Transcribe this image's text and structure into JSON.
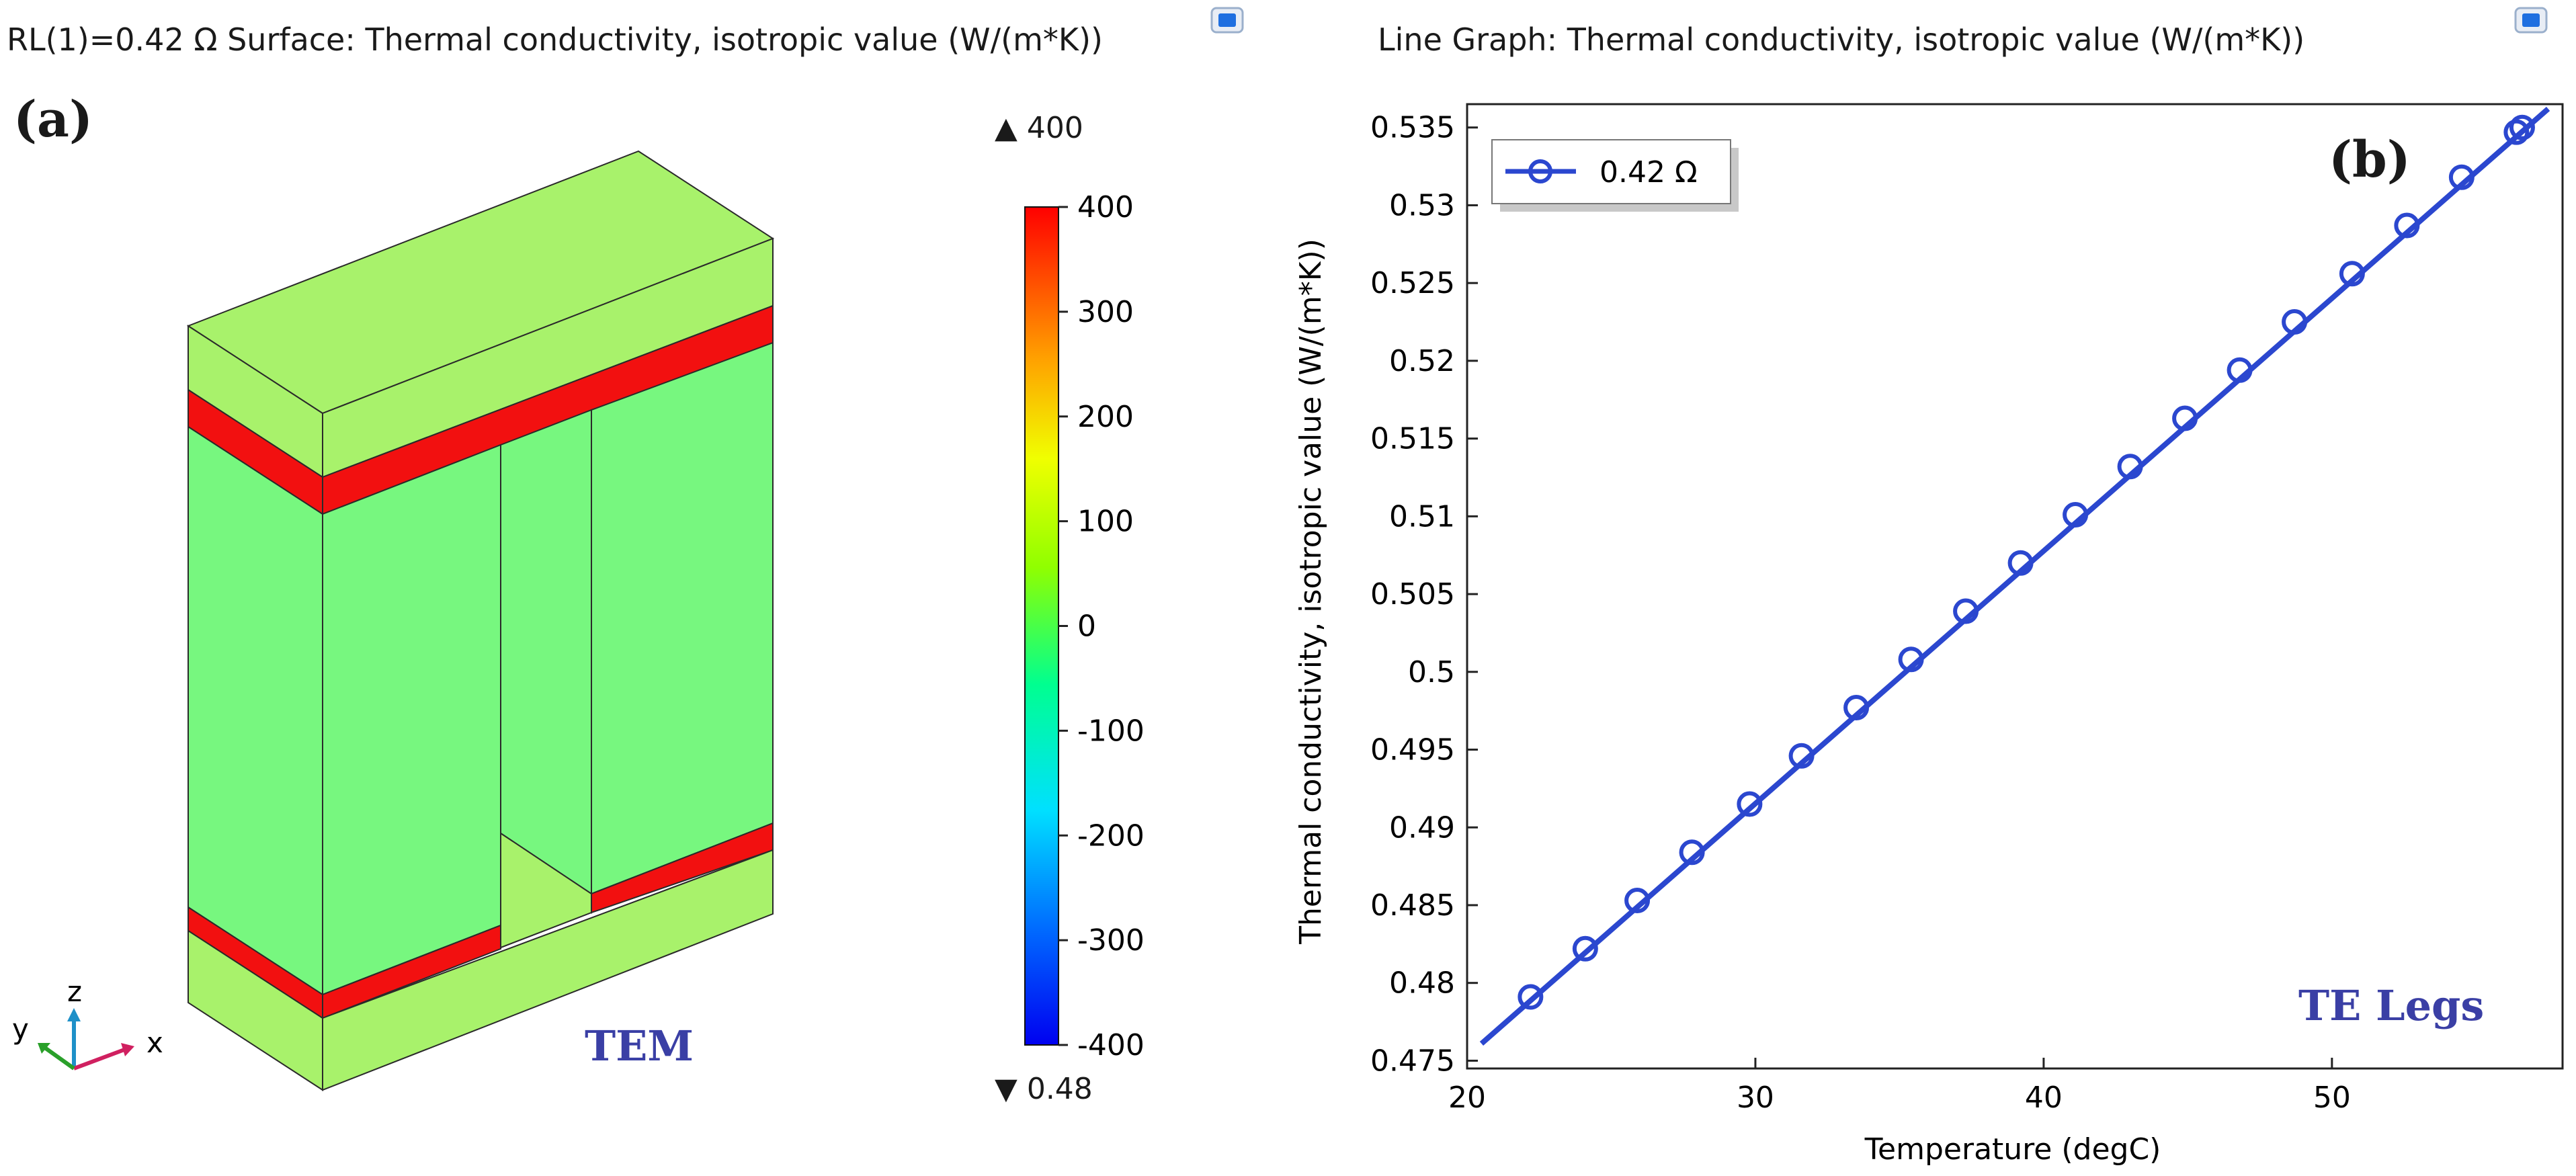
{
  "left_panel": {
    "title": "RL(1)=0.42 Ω   Surface: Thermal conductivity, isotropic value (W/(m*K))",
    "panel_label": "(a)",
    "model_label": "TEM",
    "axis_labels": {
      "x": "x",
      "y": "y",
      "z": "z"
    },
    "icon": "comsol-window-icon",
    "colorbar": {
      "max_marker": "▲ 400",
      "min_marker": "▼ 0.48",
      "ticks": [
        "400",
        "300",
        "200",
        "100",
        "0",
        "-100",
        "-200",
        "-300",
        "-400"
      ],
      "colors": [
        "#0000ff",
        "#00a0ff",
        "#00ffff",
        "#00ff80",
        "#80ff00",
        "#ffff00",
        "#ff8000",
        "#ff0000"
      ]
    },
    "colors": {
      "leg": "#77f77f",
      "ceramic": "#a8f26b",
      "electrode": "#f21010"
    }
  },
  "right_panel": {
    "title": "Line Graph: Thermal conductivity, isotropic value (W/(m*K))",
    "panel_label": "(b)",
    "model_label": "TE Legs",
    "icon": "comsol-window-icon"
  },
  "chart_data": {
    "type": "line",
    "title": "Line Graph: Thermal conductivity, isotropic value (W/(m*K))",
    "xlabel": "Temperature (degC)",
    "ylabel": "Thermal conductivity, isotropic value (W/(m*K))",
    "xlim": [
      20,
      58
    ],
    "ylim": [
      0.4745,
      0.5365
    ],
    "xticks": [
      20,
      30,
      40,
      50
    ],
    "yticks": [
      0.475,
      0.48,
      0.485,
      0.49,
      0.495,
      0.5,
      0.505,
      0.51,
      0.515,
      0.52,
      0.525,
      0.53,
      0.535
    ],
    "ytick_labels": [
      "0.475",
      "0.48",
      "0.485",
      "0.49",
      "0.495",
      "0.5",
      "0.505",
      "0.51",
      "0.515",
      "0.52",
      "0.525",
      "0.53",
      "0.535"
    ],
    "series": [
      {
        "name": "0.42 Ω",
        "color": "#2b47cf",
        "line_x": [
          20.5,
          57.5
        ],
        "line_y": [
          0.4761,
          0.5362
        ],
        "x": [
          22.2,
          24.1,
          25.9,
          27.8,
          29.8,
          31.6,
          33.5,
          35.4,
          37.3,
          39.2,
          41.1,
          43.0,
          44.9,
          46.8,
          48.7,
          50.7,
          52.6,
          54.5,
          56.4,
          56.6
        ],
        "y": [
          0.4791,
          0.4822,
          0.4853,
          0.4884,
          0.4915,
          0.4946,
          0.4977,
          0.5008,
          0.5039,
          0.507,
          0.5101,
          0.5132,
          0.5163,
          0.5194,
          0.5225,
          0.5256,
          0.5287,
          0.5318,
          0.5347,
          0.535
        ]
      }
    ],
    "legend_position": "top-left"
  }
}
